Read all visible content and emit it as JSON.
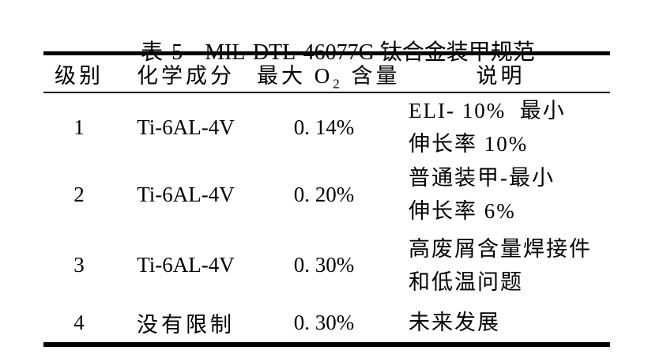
{
  "caption": {
    "table_label": "表 5",
    "table_title": "MIL-DTL-46077G 钛合金装甲规范"
  },
  "table": {
    "header": {
      "grade": "级别",
      "composition": "化学成分",
      "max_o2_prefix": "最大 O",
      "max_o2_sub": "2",
      "max_o2_suffix": " 含量",
      "description": "说明"
    },
    "rows": [
      {
        "grade": "1",
        "composition": "Ti-6AL-4V",
        "max_o2": "0. 14%",
        "note1": "ELI- 10%  最小",
        "note2": "伸长率 10%"
      },
      {
        "grade": "2",
        "composition": "Ti-6AL-4V",
        "max_o2": "0. 20%",
        "note1": "普通装甲-最小",
        "note2": "伸长率 6%"
      },
      {
        "grade": "3",
        "composition": "Ti-6AL-4V",
        "max_o2": "0. 30%",
        "note1": "高废屑含量焊接件",
        "note2": "和低温问题"
      },
      {
        "grade": "4",
        "composition": "没有限制",
        "max_o2": "0. 30%",
        "note1": "未来发展",
        "note2": ""
      }
    ]
  },
  "colors": {
    "text": "#000000",
    "background": "#ffffff",
    "rule": "#000000"
  }
}
